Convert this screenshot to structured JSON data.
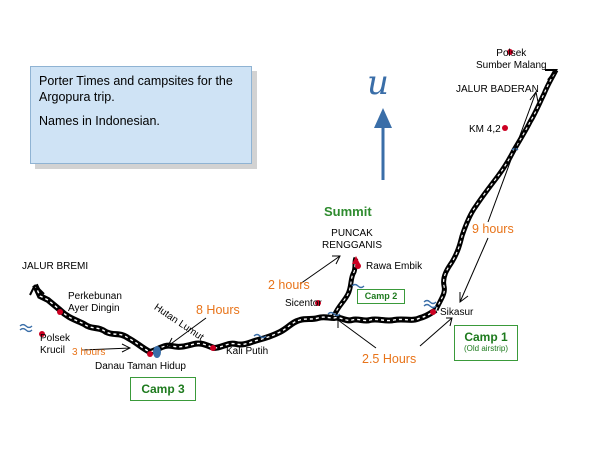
{
  "info": {
    "line1": "Porter Times and campsites for the Argopura trip.",
    "line2": "Names in Indonesian."
  },
  "compass": {
    "north_letter": "u"
  },
  "places": {
    "polsek_sumber_malang": "Polsek\nSumber Malang",
    "jalur_baderan": "JALUR BADERAN",
    "km_42": "KM 4,2",
    "summit": "Summit",
    "puncak_rengganis": "PUNCAK\nRENGGANIS",
    "rawa_embik": "Rawa Embik",
    "sicentor": "Sicentor",
    "sikasur": "Sikasur",
    "jalur_bremi": "JALUR BREMI",
    "perkebunan": "Perkebunan\nAyer Dingin",
    "polsek_krucil": "Polsek\nKrucil",
    "danau": "Danau Taman Hidup",
    "hutan_lumut": "Hutan Lumut",
    "kali_putih": "Kali Putih"
  },
  "times": {
    "t9": "9 hours",
    "t2": "2 hours",
    "t8": "8 Hours",
    "t3": "3 hours",
    "t25": "2.5 Hours"
  },
  "camps": {
    "camp1": {
      "label": "Camp 1",
      "note": "(Old airstrip)"
    },
    "camp2": {
      "label": "Camp 2"
    },
    "camp3": {
      "label": "Camp 3"
    }
  },
  "colors": {
    "trail": "#000000",
    "trail_dash": "#ffffff",
    "poi": "#cc0022",
    "time_text": "#e8741a",
    "camp_border": "#3a9a3a",
    "water": "#3a6ea8",
    "info_bg": "#cfe3f5"
  }
}
